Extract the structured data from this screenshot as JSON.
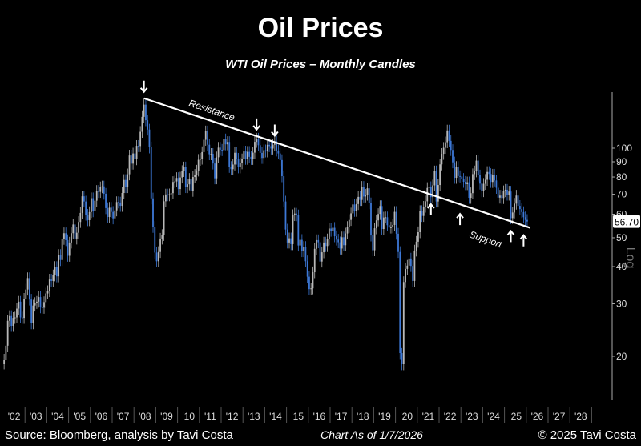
{
  "title": "Oil Prices",
  "subtitle": "WTI Oil Prices – Monthly Candles",
  "footer": {
    "source": "Source: Bloomberg, analysis by Tavi Costa",
    "as_of": "Chart As of 1/7/2026",
    "copyright": "© 2025 Tavi Costa"
  },
  "chart_data": {
    "type": "candlestick",
    "title": "Oil Prices",
    "subtitle": "WTI Oil Prices – Monthly Candles",
    "y_scale": "log",
    "ylim": [
      17,
      150
    ],
    "y_ticks": [
      20,
      30,
      40,
      50,
      60,
      70,
      80,
      90,
      100
    ],
    "x_tick_labels": [
      "'02",
      "'03",
      "'04",
      "'05",
      "'06",
      "'07",
      "'08",
      "'09",
      "'10",
      "'11",
      "'12",
      "'13",
      "'14",
      "'15",
      "'16",
      "'17",
      "'18",
      "'19",
      "'20",
      "'21",
      "'22",
      "'23",
      "'24",
      "'25",
      "'26",
      "'27",
      "'28"
    ],
    "x_range": [
      "2002-01",
      "2028-12"
    ],
    "start": "2002-01",
    "monthly_close": [
      19.5,
      21.7,
      26.3,
      27.3,
      25.3,
      26.9,
      27.0,
      28.9,
      30.5,
      27.0,
      26.9,
      31.2,
      33.5,
      36.6,
      31.0,
      25.8,
      29.6,
      30.2,
      30.5,
      31.6,
      29.2,
      29.1,
      30.4,
      32.5,
      33.1,
      36.2,
      35.8,
      37.4,
      39.9,
      37.1,
      43.8,
      42.1,
      49.6,
      51.8,
      49.1,
      43.5,
      48.2,
      51.8,
      55.4,
      49.7,
      52.0,
      56.5,
      60.6,
      68.9,
      66.2,
      59.8,
      57.3,
      61.0,
      67.9,
      61.4,
      66.6,
      71.9,
      71.3,
      73.9,
      74.4,
      70.3,
      62.9,
      58.7,
      63.1,
      61.1,
      58.1,
      61.8,
      65.9,
      65.7,
      64.0,
      70.7,
      78.2,
      74.0,
      81.7,
      94.5,
      88.7,
      96.0,
      91.8,
      101.8,
      101.6,
      113.5,
      127.4,
      140.0,
      124.1,
      115.5,
      100.6,
      67.8,
      54.4,
      44.6,
      41.7,
      44.8,
      49.7,
      51.1,
      66.3,
      69.9,
      69.5,
      70.0,
      70.6,
      77.0,
      77.3,
      79.4,
      72.9,
      79.7,
      83.8,
      86.2,
      74.0,
      75.6,
      78.9,
      71.9,
      80.0,
      81.4,
      84.1,
      91.4,
      92.2,
      97.0,
      106.7,
      113.9,
      102.7,
      95.4,
      95.7,
      88.8,
      79.2,
      93.2,
      100.4,
      98.8,
      98.5,
      107.1,
      103.0,
      104.9,
      86.5,
      85.0,
      88.1,
      96.5,
      92.2,
      86.2,
      88.9,
      91.8,
      97.5,
      92.1,
      97.2,
      93.5,
      92.0,
      96.6,
      105.0,
      107.7,
      102.3,
      96.4,
      92.7,
      98.4,
      97.5,
      102.6,
      101.6,
      99.7,
      102.7,
      105.4,
      98.2,
      96.0,
      91.2,
      80.5,
      66.2,
      53.3,
      48.2,
      49.8,
      47.6,
      59.6,
      60.3,
      59.5,
      47.1,
      49.2,
      45.1,
      46.6,
      41.7,
      37.0,
      33.6,
      33.8,
      38.3,
      45.9,
      49.1,
      48.3,
      41.6,
      44.7,
      48.2,
      46.9,
      49.4,
      53.7,
      52.8,
      54.0,
      50.6,
      49.3,
      48.3,
      46.0,
      50.2,
      47.2,
      51.7,
      54.4,
      57.4,
      60.4,
      64.7,
      61.6,
      64.9,
      68.6,
      67.0,
      74.2,
      68.8,
      69.8,
      73.3,
      65.3,
      50.9,
      45.4,
      53.8,
      57.2,
      60.1,
      63.9,
      53.5,
      58.5,
      58.6,
      55.1,
      54.1,
      54.2,
      55.2,
      61.1,
      51.6,
      44.8,
      20.5,
      18.8,
      35.5,
      39.3,
      40.3,
      42.6,
      40.2,
      35.8,
      45.3,
      48.5,
      52.2,
      61.5,
      59.2,
      63.6,
      66.3,
      73.5,
      74.0,
      68.5,
      75.0,
      83.6,
      66.2,
      75.2,
      88.2,
      95.7,
      100.3,
      104.7,
      114.7,
      105.8,
      98.6,
      89.6,
      79.5,
      86.5,
      80.6,
      80.3,
      78.9,
      77.1,
      75.7,
      76.8,
      68.1,
      70.6,
      81.8,
      83.6,
      90.8,
      81.0,
      76.0,
      71.7,
      75.9,
      78.3,
      83.2,
      81.9,
      77.0,
      81.5,
      77.9,
      73.6,
      68.2,
      69.3,
      68.0,
      71.7,
      72.5,
      69.8,
      71.5,
      58.2,
      60.8,
      65.1,
      69.3,
      64.0,
      62.4,
      61.0,
      58.6,
      57.4,
      56.7
    ],
    "last_price_label": "56.70",
    "scale_label": "Log",
    "trendline": {
      "label_upper": "Resistance",
      "label_lower": "Support",
      "from": {
        "date": "2008-06",
        "value": 147
      },
      "to": {
        "date": "2025-12",
        "value": 54
      }
    },
    "annotations": {
      "down_arrows": [
        "2008-06",
        "2013-08",
        "2014-06"
      ],
      "up_arrows": [
        "2021-08",
        "2022-12",
        "2025-04",
        "2025-11"
      ]
    },
    "colors": {
      "up": "#b8b8b8",
      "down": "#3d78d6",
      "trendline": "#ffffff",
      "background": "#000000"
    }
  }
}
